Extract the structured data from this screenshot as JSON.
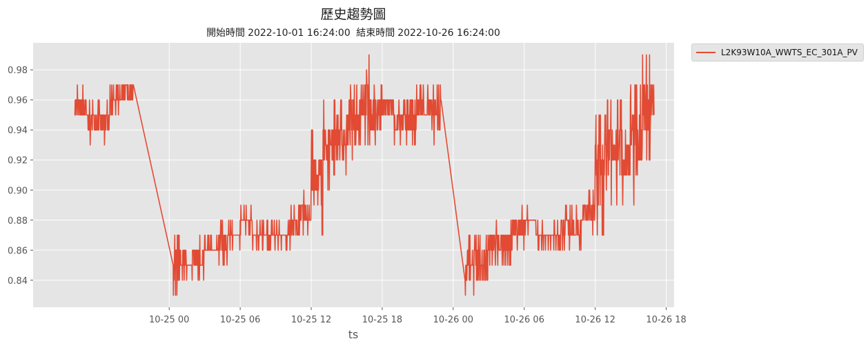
{
  "header": {
    "title": "歷史趨勢圖",
    "start_label": "開始時間",
    "start_time": "2022-10-01 16:24:00",
    "end_label": "結束時間",
    "end_time": "2022-10-26 16:24:00"
  },
  "colors": {
    "series": "#E24A33",
    "plot_bg": "#E5E5E5",
    "grid": "#FFFFFF"
  },
  "chart_data": {
    "type": "line",
    "title": "歷史趨勢圖",
    "subtitle": "開始時間 2022-10-01 16:24:00 結束時間 2022-10-26 16:24:00",
    "xlabel": "ts",
    "ylabel": "",
    "grid": true,
    "legend_position": "outside-top-right",
    "xlim": [
      "2022-10-24 12:30",
      "2022-10-26 18:40"
    ],
    "ylim": [
      0.822,
      0.998
    ],
    "x_ticks": [
      "10-25 00",
      "10-25 06",
      "10-25 12",
      "10-25 18",
      "10-26 00",
      "10-26 06",
      "10-26 12",
      "10-26 18"
    ],
    "y_ticks": [
      "0.84",
      "0.86",
      "0.88",
      "0.90",
      "0.92",
      "0.94",
      "0.96",
      "0.98"
    ],
    "series": [
      {
        "name": "L2K93W10A_WWTS_EC_301A_PV",
        "x": [
          "2022-10-24 16:00",
          "2022-10-24 17:00",
          "2022-10-24 18:00",
          "2022-10-24 19:00",
          "2022-10-24 20:00",
          "2022-10-25 00:20",
          "2022-10-25 01:00",
          "2022-10-25 02:00",
          "2022-10-25 03:00",
          "2022-10-25 04:00",
          "2022-10-25 05:00",
          "2022-10-25 06:00",
          "2022-10-25 07:00",
          "2022-10-25 08:00",
          "2022-10-25 09:00",
          "2022-10-25 10:00",
          "2022-10-25 11:00",
          "2022-10-25 12:00",
          "2022-10-25 13:00",
          "2022-10-25 14:00",
          "2022-10-25 15:00",
          "2022-10-25 16:00",
          "2022-10-25 17:00",
          "2022-10-25 18:00",
          "2022-10-25 19:00",
          "2022-10-25 20:00",
          "2022-10-25 21:00",
          "2022-10-25 22:00",
          "2022-10-26 01:00",
          "2022-10-26 02:00",
          "2022-10-26 03:00",
          "2022-10-26 04:00",
          "2022-10-26 05:00",
          "2022-10-26 06:00",
          "2022-10-26 07:00",
          "2022-10-26 08:00",
          "2022-10-26 09:00",
          "2022-10-26 10:00",
          "2022-10-26 11:00",
          "2022-10-26 12:00",
          "2022-10-26 13:00",
          "2022-10-26 14:00",
          "2022-10-26 15:00",
          "2022-10-26 16:00"
        ],
        "y_min": [
          0.94,
          0.93,
          0.93,
          0.95,
          0.96,
          0.83,
          0.84,
          0.84,
          0.85,
          0.85,
          0.86,
          0.87,
          0.86,
          0.86,
          0.86,
          0.86,
          0.87,
          0.87,
          0.9,
          0.91,
          0.92,
          0.93,
          0.93,
          0.94,
          0.93,
          0.93,
          0.94,
          0.93,
          0.83,
          0.84,
          0.85,
          0.85,
          0.86,
          0.87,
          0.86,
          0.86,
          0.86,
          0.86,
          0.87,
          0.87,
          0.89,
          0.89,
          0.89,
          0.92
        ],
        "y_max": [
          0.97,
          0.96,
          0.96,
          0.97,
          0.97,
          0.87,
          0.86,
          0.87,
          0.87,
          0.88,
          0.88,
          0.89,
          0.88,
          0.88,
          0.88,
          0.89,
          0.9,
          0.94,
          0.96,
          0.96,
          0.97,
          0.99,
          0.97,
          0.97,
          0.96,
          0.97,
          0.97,
          0.97,
          0.87,
          0.87,
          0.88,
          0.88,
          0.89,
          0.89,
          0.88,
          0.88,
          0.89,
          0.89,
          0.9,
          0.95,
          0.96,
          0.96,
          0.97,
          0.99
        ]
      }
    ]
  }
}
